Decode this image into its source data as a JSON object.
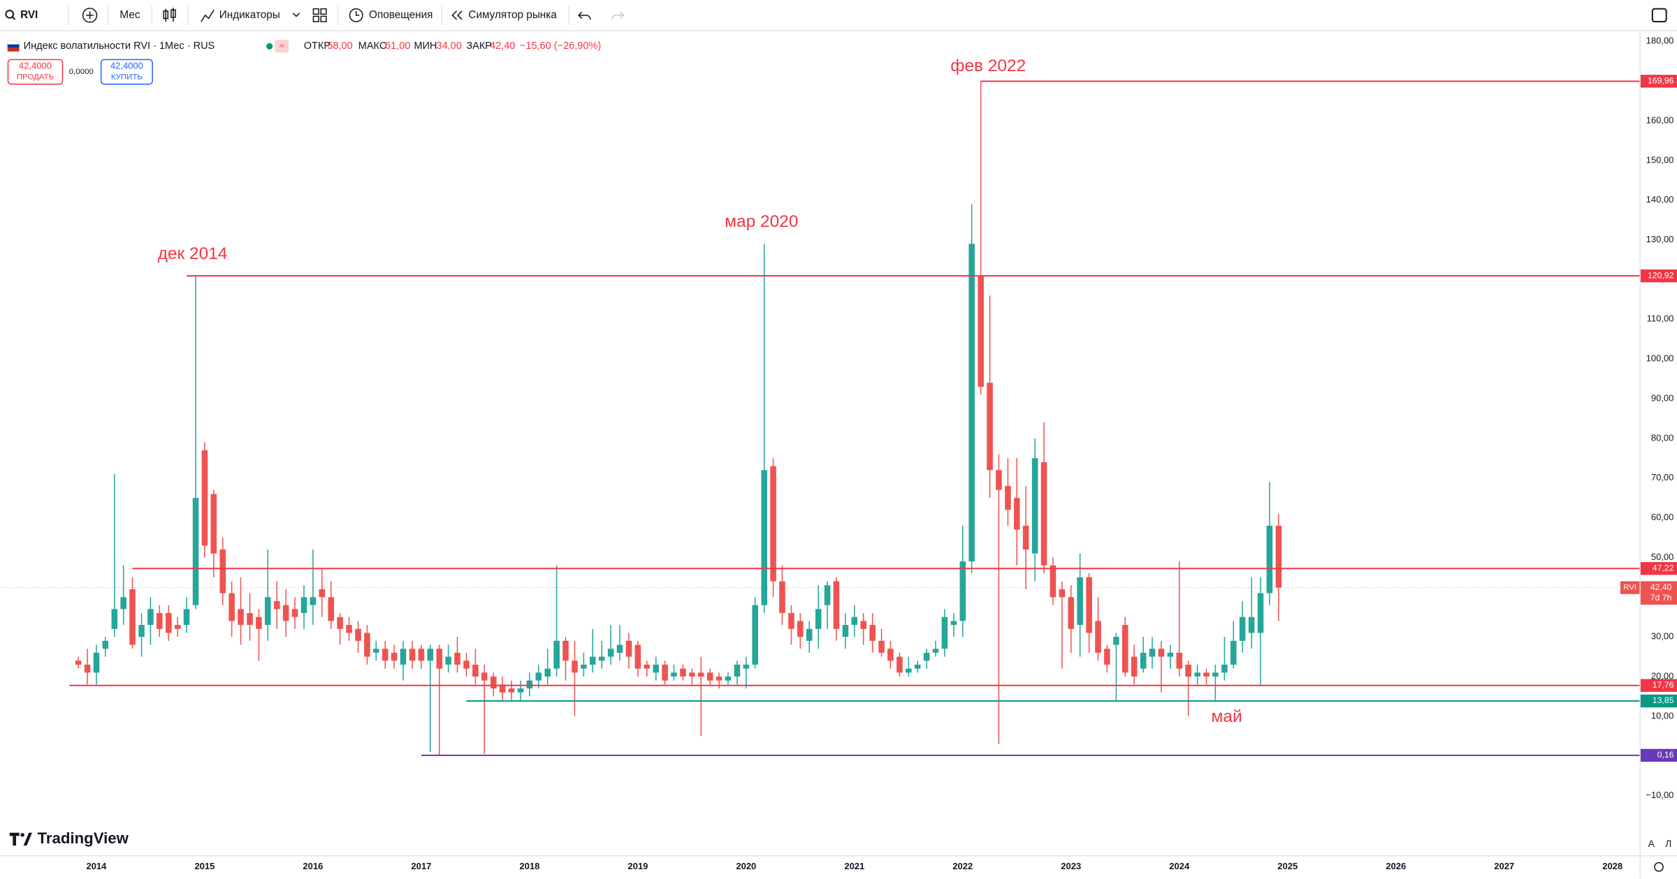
{
  "toolbar": {
    "symbol": "RVI",
    "interval": "Мес",
    "items": [
      "Индикаторы",
      "Оповещения",
      "Симулятор рынка"
    ]
  },
  "legend": {
    "title": "Индекс волатильности RVI · 1Мес · RUS",
    "ohlc": [
      {
        "label": "ОТКР",
        "value": "58,00"
      },
      {
        "label": "МАКС",
        "value": "61,00"
      },
      {
        "label": "МИН",
        "value": "34,00"
      },
      {
        "label": "ЗАКР",
        "value": "42,40"
      }
    ],
    "change": "−15,60 (−26,90%)"
  },
  "trade": {
    "sell_price": "42,4000",
    "sell": "ПРОДАТЬ",
    "spread": "0,0000",
    "buy_price": "42,4000",
    "buy": "КУПИТЬ"
  },
  "brand": "TradingView",
  "scale_buttons": [
    "A",
    "Л"
  ],
  "chart_data": {
    "type": "candlestick",
    "up_color": "#26a69a",
    "down_color": "#ef5350",
    "x": [
      2013.833,
      2013.917,
      2014.0,
      2014.083,
      2014.167,
      2014.25,
      2014.333,
      2014.417,
      2014.5,
      2014.583,
      2014.667,
      2014.75,
      2014.833,
      2014.917,
      2015.0,
      2015.083,
      2015.167,
      2015.25,
      2015.333,
      2015.417,
      2015.5,
      2015.583,
      2015.667,
      2015.75,
      2015.833,
      2015.917,
      2016.0,
      2016.083,
      2016.167,
      2016.25,
      2016.333,
      2016.417,
      2016.5,
      2016.583,
      2016.667,
      2016.75,
      2016.833,
      2016.917,
      2017.0,
      2017.083,
      2017.167,
      2017.25,
      2017.333,
      2017.417,
      2017.5,
      2017.583,
      2017.667,
      2017.75,
      2017.833,
      2017.917,
      2018.0,
      2018.083,
      2018.167,
      2018.25,
      2018.333,
      2018.417,
      2018.5,
      2018.583,
      2018.667,
      2018.75,
      2018.833,
      2018.917,
      2019.0,
      2019.083,
      2019.167,
      2019.25,
      2019.333,
      2019.417,
      2019.5,
      2019.583,
      2019.667,
      2019.75,
      2019.833,
      2019.917,
      2020.0,
      2020.083,
      2020.167,
      2020.25,
      2020.333,
      2020.417,
      2020.5,
      2020.583,
      2020.667,
      2020.75,
      2020.833,
      2020.917,
      2021.0,
      2021.083,
      2021.167,
      2021.25,
      2021.333,
      2021.417,
      2021.5,
      2021.583,
      2021.667,
      2021.75,
      2021.833,
      2021.917,
      2022.0,
      2022.083,
      2022.167,
      2022.25,
      2022.333,
      2022.417,
      2022.5,
      2022.583,
      2022.667,
      2022.75,
      2022.833,
      2022.917,
      2023.0,
      2023.083,
      2023.167,
      2023.25,
      2023.333,
      2023.417,
      2023.5,
      2023.583,
      2023.667,
      2023.75,
      2023.833,
      2023.917,
      2024.0,
      2024.083,
      2024.167,
      2024.25,
      2024.333,
      2024.417,
      2024.5,
      2024.583,
      2024.667,
      2024.75,
      2024.833,
      2024.917
    ],
    "open": [
      24,
      23,
      21,
      27,
      32,
      37,
      42,
      30,
      33,
      36,
      36,
      33,
      33,
      38,
      77,
      66,
      52,
      41,
      37,
      36,
      35,
      33,
      39,
      38,
      37,
      36,
      38,
      42,
      40,
      35,
      33,
      32,
      31,
      26,
      27,
      26,
      23,
      27,
      27,
      24,
      27,
      23,
      26,
      24,
      23,
      21,
      20,
      18,
      17,
      16,
      17,
      19,
      20,
      22,
      29,
      24,
      22,
      23,
      24,
      25,
      26,
      29,
      28,
      23,
      21,
      23,
      20,
      22,
      21,
      21,
      21,
      20,
      19,
      20,
      22,
      23,
      38,
      73,
      44,
      36,
      34,
      29,
      32,
      38,
      44,
      30,
      33,
      34,
      33,
      29,
      27,
      25,
      21,
      22,
      24,
      26,
      27,
      33,
      34,
      49,
      121,
      94,
      72,
      68,
      65,
      58,
      51,
      74,
      48,
      42,
      40,
      33,
      45,
      34,
      27,
      28,
      33,
      25,
      22,
      25,
      27,
      25,
      26,
      23,
      20,
      21,
      20,
      21,
      23,
      29,
      31,
      31,
      41,
      58
    ],
    "high": [
      25,
      27,
      28,
      30,
      71,
      48,
      45,
      36,
      40,
      38,
      38,
      35,
      40,
      120.92,
      79,
      67,
      55,
      44,
      45,
      41,
      37,
      52,
      44,
      42,
      40,
      43,
      52,
      47,
      44,
      36,
      35,
      34,
      33,
      29,
      29,
      28,
      29,
      29,
      28,
      28,
      28,
      28,
      30,
      26,
      27,
      23,
      21,
      20,
      19,
      19,
      21,
      23,
      27,
      48,
      30,
      29,
      26,
      32,
      29,
      33,
      33,
      31,
      29,
      24,
      25,
      24,
      23,
      23,
      22,
      25,
      22,
      21,
      21,
      24,
      25,
      40,
      129,
      75,
      48,
      38,
      36,
      34,
      43,
      44,
      45,
      36,
      38,
      36,
      36,
      32,
      29,
      26,
      25,
      24,
      27,
      29,
      37,
      36,
      58,
      139,
      169.96,
      116,
      76,
      75,
      75,
      68,
      80,
      84,
      50,
      44,
      43,
      51,
      46,
      40,
      28,
      31,
      35,
      28,
      30,
      30,
      29,
      28,
      49,
      24,
      23,
      22,
      23,
      30,
      34,
      39,
      45,
      45,
      69,
      61
    ],
    "low": [
      22,
      18,
      18,
      25,
      30,
      33,
      27,
      25,
      28,
      30,
      29,
      30,
      31,
      37,
      50,
      45,
      38,
      30,
      28,
      29,
      24,
      29,
      32,
      30,
      32,
      32,
      33,
      35,
      32,
      28,
      29,
      26,
      23,
      24,
      22,
      22,
      19,
      22,
      22,
      1,
      0.16,
      21,
      21,
      20,
      18,
      0.5,
      15,
      14,
      14,
      14,
      15,
      17,
      18,
      20,
      19,
      10,
      20,
      21,
      22,
      23,
      24,
      22,
      20,
      20,
      19,
      18,
      19,
      19,
      18,
      5,
      18,
      17,
      18,
      18,
      17,
      22,
      36,
      40,
      33,
      28,
      27,
      26,
      27,
      32,
      29,
      27,
      30,
      28,
      26,
      25,
      22,
      20,
      20,
      21,
      22,
      25,
      25,
      30,
      30,
      46,
      91,
      65,
      3,
      58,
      48,
      42,
      44,
      46,
      38,
      22,
      26,
      25,
      26,
      24,
      21,
      14,
      20,
      18,
      21,
      22,
      16,
      22,
      20,
      10,
      18,
      18,
      13.85,
      19,
      22,
      26,
      27,
      17.76,
      38,
      34
    ],
    "close": [
      23,
      21,
      26,
      29,
      37,
      40,
      28,
      33,
      37,
      32,
      31,
      32,
      37,
      65,
      53,
      51,
      41,
      34,
      33,
      33,
      32,
      40,
      37,
      34,
      35,
      40,
      40,
      40,
      34,
      32,
      31,
      29,
      25,
      27,
      24,
      24,
      27,
      24,
      24,
      27,
      22,
      25,
      23,
      22,
      20,
      19,
      17,
      16,
      16,
      17,
      19,
      21,
      22,
      29,
      24,
      21,
      23,
      25,
      25,
      27,
      28,
      25,
      22,
      22,
      23,
      19,
      21,
      20,
      20,
      20,
      19,
      19,
      20,
      23,
      23,
      38,
      72,
      44,
      36,
      32,
      30,
      32,
      37,
      43,
      32,
      33,
      35,
      32,
      29,
      26,
      24,
      21,
      22,
      23,
      26,
      27,
      35,
      34,
      49,
      129,
      93,
      72,
      67,
      62,
      57,
      52,
      75,
      48,
      40,
      40,
      32,
      45,
      31,
      26,
      23,
      30,
      21,
      20,
      26,
      27,
      25,
      26,
      22,
      20,
      21,
      20,
      21,
      23,
      29,
      35,
      35,
      41,
      58,
      42.4
    ],
    "xlim": [
      2013.11,
      2028.25
    ],
    "xticks": [
      2014,
      2015,
      2016,
      2017,
      2018,
      2019,
      2020,
      2021,
      2022,
      2023,
      2024,
      2025,
      2026,
      2027,
      2028
    ],
    "ylim": [
      -25,
      182
    ],
    "yticks": [
      {
        "value": 180,
        "label": "180,00"
      },
      {
        "value": 170,
        "label": "170,00"
      },
      {
        "value": 160,
        "label": "160,00"
      },
      {
        "value": 150,
        "label": "150,00"
      },
      {
        "value": 140,
        "label": "140,00"
      },
      {
        "value": 130,
        "label": "130,00"
      },
      {
        "value": 120,
        "label": "120,00"
      },
      {
        "value": 110,
        "label": "110,00"
      },
      {
        "value": 100,
        "label": "100,00"
      },
      {
        "value": 90,
        "label": "90,00"
      },
      {
        "value": 80,
        "label": "80,00"
      },
      {
        "value": 70,
        "label": "70,00"
      },
      {
        "value": 60,
        "label": "60,00"
      },
      {
        "value": 50,
        "label": "50,00"
      },
      {
        "value": 40,
        "label": "40,00"
      },
      {
        "value": 30,
        "label": "30,00"
      },
      {
        "value": 20,
        "label": "20,00"
      },
      {
        "value": 10,
        "label": "10,00"
      },
      {
        "value": 0,
        "label": "0,00"
      },
      {
        "value": -10,
        "label": "−10,00"
      }
    ],
    "grid": false,
    "levels": [
      {
        "value": 169.96,
        "label": "169,96",
        "color": "#f23645",
        "x_start": 2022.167
      },
      {
        "value": 120.92,
        "label": "120,92",
        "color": "#f23645",
        "x_start": 2014.833
      },
      {
        "value": 47.22,
        "label": "47,22",
        "color": "#f23645",
        "x_start": 2014.333
      },
      {
        "value": 17.76,
        "label": "17,76",
        "color": "#f23645",
        "x_start": 2013.75
      },
      {
        "value": 13.85,
        "label": "13,85",
        "color": "#089981",
        "x_start": 2017.417
      },
      {
        "value": 0.16,
        "label": "0,16",
        "color": "#673ab7",
        "x_start": 2017.0
      }
    ],
    "annotations": [
      "дек 2014",
      "мар 2020",
      "фев 2022",
      "май"
    ],
    "last": {
      "symbol": "RVI",
      "value": 42.4,
      "label": "42,40",
      "countdown": "7d 7h"
    }
  }
}
